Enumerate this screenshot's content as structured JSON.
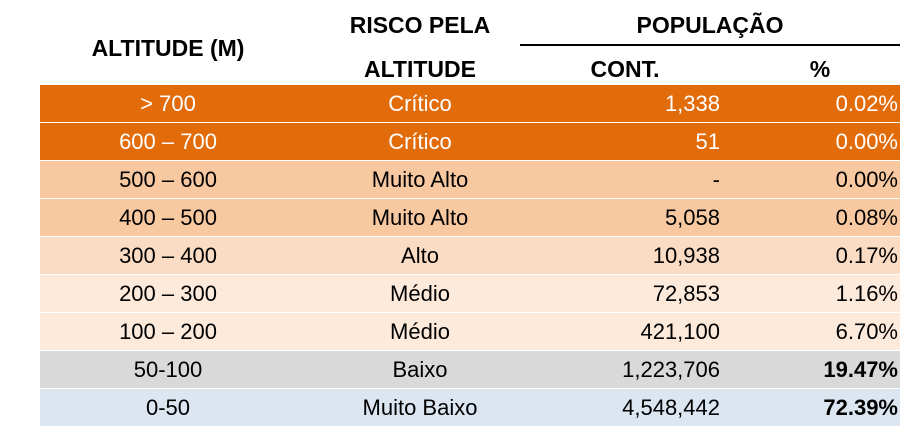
{
  "header": {
    "altitude": "ALTITUDE (M)",
    "risk_line1": "RISCO PELA",
    "risk_line2": "ALTITUDE",
    "population": "POPULAÇÃO",
    "count": "CONT.",
    "percent": "%"
  },
  "rows": [
    {
      "altitude": "> 700",
      "risk": "Crítico",
      "count": "1,338",
      "percent": "0.02%",
      "bg": "#e26b0a",
      "text_color": "#ffffff",
      "bold_percent": false
    },
    {
      "altitude": "600 – 700",
      "risk": "Crítico",
      "count": "51",
      "percent": "0.00%",
      "bg": "#e26b0a",
      "text_color": "#ffffff",
      "bold_percent": false
    },
    {
      "altitude": "500 – 600",
      "risk": "Muito Alto",
      "count": "-",
      "percent": "0.00%",
      "bg": "#f8c9a1",
      "text_color": "#000000",
      "bold_percent": false
    },
    {
      "altitude": "400 – 500",
      "risk": "Muito Alto",
      "count": "5,058",
      "percent": "0.08%",
      "bg": "#f8c9a1",
      "text_color": "#000000",
      "bold_percent": false
    },
    {
      "altitude": "300 – 400",
      "risk": "Alto",
      "count": "10,938",
      "percent": "0.17%",
      "bg": "#fadcc4",
      "text_color": "#000000",
      "bold_percent": false
    },
    {
      "altitude": "200 – 300",
      "risk": "Médio",
      "count": "72,853",
      "percent": "1.16%",
      "bg": "#fdeadb",
      "text_color": "#000000",
      "bold_percent": false
    },
    {
      "altitude": "100 – 200",
      "risk": "Médio",
      "count": "421,100",
      "percent": "6.70%",
      "bg": "#fdeadb",
      "text_color": "#000000",
      "bold_percent": false
    },
    {
      "altitude": "50-100",
      "risk": "Baixo",
      "count": "1,223,706",
      "percent": "19.47%",
      "bg": "#d9d9d9",
      "text_color": "#000000",
      "bold_percent": true
    },
    {
      "altitude": "0-50",
      "risk": "Muito Baixo",
      "count": "4,548,442",
      "percent": "72.39%",
      "bg": "#dce6f1",
      "text_color": "#000000",
      "bold_percent": true
    }
  ]
}
